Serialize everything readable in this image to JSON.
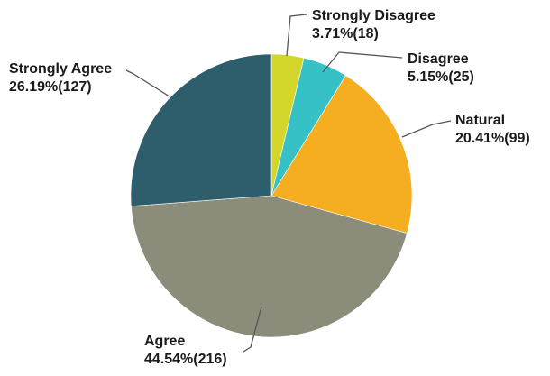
{
  "chart_data": {
    "type": "pie",
    "start_angle_deg": 0,
    "direction": "clockwise",
    "slices": [
      {
        "label": "Strongly Disagree",
        "value": 18,
        "percent_label": "3.71%(18)",
        "color": "#d4d62b"
      },
      {
        "label": "Disagree",
        "value": 25,
        "percent_label": "5.15%(25)",
        "color": "#35c1c5"
      },
      {
        "label": "Natural",
        "value": 99,
        "percent_label": "20.41%(99)",
        "color": "#f5ae20"
      },
      {
        "label": "Agree",
        "value": 216,
        "percent_label": "44.54%(216)",
        "color": "#8b8c7a"
      },
      {
        "label": "Strongly Agree",
        "value": 127,
        "percent_label": "26.19%(127)",
        "color": "#2e5d6b"
      }
    ],
    "legend": "none"
  }
}
